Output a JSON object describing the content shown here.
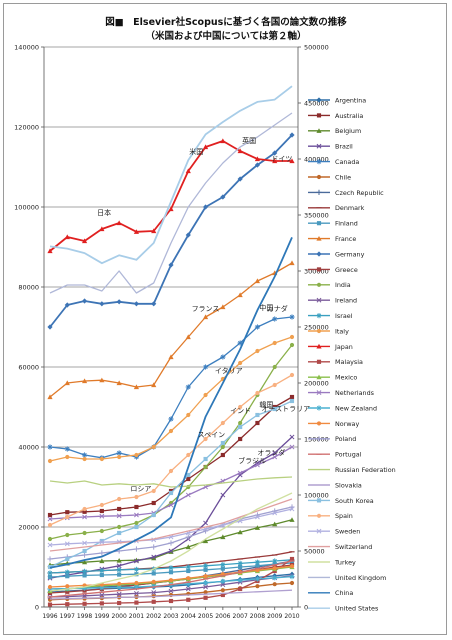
{
  "chart_data": {
    "type": "line",
    "title": "図■　Elsevier社Scopusに基づく各国の論文数の推移",
    "subtitle": "（米国および中国については第２軸）",
    "x": [
      "1996",
      "1997",
      "1998",
      "1999",
      "2000",
      "2001",
      "2002",
      "2003",
      "2004",
      "2005",
      "2006",
      "2007",
      "2008",
      "2009",
      "2010"
    ],
    "ylim_left": [
      0,
      140000
    ],
    "yticks_left": [
      "0",
      "20000",
      "40000",
      "60000",
      "80000",
      "100000",
      "120000",
      "140000"
    ],
    "ylim_right": [
      0,
      500000
    ],
    "yticks_right": [
      "0",
      "50000",
      "100000",
      "150000",
      "200000",
      "250000",
      "300000",
      "350000",
      "400000",
      "450000",
      "500000"
    ],
    "grid": true,
    "legend_position": "right",
    "series": [
      {
        "name": "Argentina",
        "color": "#2e6fa7",
        "marker": "diamond",
        "axis": "left",
        "values": [
          3700,
          4000,
          4200,
          4500,
          4700,
          4800,
          5000,
          5200,
          5500,
          6000,
          6400,
          6900,
          7400,
          7800,
          8200
        ]
      },
      {
        "name": "Australia",
        "color": "#8b2b2b",
        "marker": "square",
        "axis": "left",
        "values": [
          23000,
          23700,
          23800,
          24000,
          24500,
          25000,
          26000,
          29000,
          32000,
          35000,
          38000,
          42000,
          46000,
          50000,
          52500
        ]
      },
      {
        "name": "Belgium",
        "color": "#5e8a2c",
        "marker": "triangle",
        "axis": "left",
        "values": [
          10500,
          10900,
          11200,
          11500,
          11600,
          11700,
          12200,
          13800,
          15000,
          16500,
          17500,
          18700,
          19800,
          20700,
          21800
        ]
      },
      {
        "name": "Brazil",
        "color": "#6a4d99",
        "marker": "x",
        "axis": "left",
        "values": [
          7200,
          8000,
          8700,
          9500,
          10300,
          11500,
          12500,
          14000,
          17000,
          21000,
          28000,
          33000,
          36000,
          38500,
          42500
        ]
      },
      {
        "name": "Canada",
        "color": "#3d7fbf",
        "marker": "star",
        "axis": "left",
        "values": [
          40000,
          39500,
          38000,
          37300,
          38500,
          37500,
          40000,
          47000,
          55000,
          60000,
          62500,
          66000,
          70000,
          72000,
          72500
        ]
      },
      {
        "name": "Chile",
        "color": "#c0692a",
        "marker": "circle",
        "axis": "left",
        "values": [
          1800,
          2000,
          2100,
          2200,
          2400,
          2500,
          2700,
          3000,
          3300,
          3700,
          4200,
          4700,
          5200,
          5700,
          6000
        ]
      },
      {
        "name": "Czech Republic",
        "color": "#4a6a9a",
        "marker": "plus",
        "axis": "left",
        "values": [
          4500,
          4600,
          4800,
          5000,
          5200,
          5500,
          6000,
          6500,
          7000,
          7800,
          8500,
          9200,
          10000,
          10700,
          11500
        ]
      },
      {
        "name": "Denmark",
        "color": "#9a3a3a",
        "marker": "dash",
        "axis": "left",
        "values": [
          8500,
          8700,
          8900,
          9100,
          9300,
          9500,
          9700,
          10000,
          10500,
          11000,
          11500,
          12000,
          12500,
          13000,
          13800
        ]
      },
      {
        "name": "Finland",
        "color": "#4a9abf",
        "marker": "square",
        "axis": "left",
        "values": [
          7500,
          7700,
          7900,
          8000,
          8100,
          8200,
          8400,
          8700,
          9000,
          9300,
          9600,
          10000,
          10300,
          10700,
          11000
        ]
      },
      {
        "name": "France",
        "color": "#e07a2a",
        "marker": "triangle",
        "axis": "left",
        "values": [
          52500,
          56000,
          56500,
          56700,
          56000,
          55000,
          55500,
          62500,
          67500,
          72500,
          75000,
          78000,
          81500,
          83500,
          86000
        ]
      },
      {
        "name": "Germany",
        "color": "#3d74b5",
        "marker": "diamond",
        "axis": "left",
        "values": [
          70000,
          75500,
          76500,
          75800,
          76300,
          75800,
          75800,
          85500,
          93000,
          100000,
          102500,
          107000,
          110500,
          113500,
          118000
        ]
      },
      {
        "name": "Greece",
        "color": "#a04040",
        "marker": "square",
        "axis": "left",
        "values": [
          3500,
          3800,
          4100,
          4500,
          5000,
          5500,
          6000,
          6500,
          7000,
          7500,
          8000,
          8700,
          9300,
          10000,
          10500
        ]
      },
      {
        "name": "India",
        "color": "#8ab04a",
        "marker": "circle",
        "axis": "left",
        "values": [
          17000,
          18000,
          18500,
          19000,
          20000,
          21000,
          23000,
          26000,
          30000,
          35000,
          40000,
          46000,
          53000,
          60000,
          65500
        ]
      },
      {
        "name": "Ireland",
        "color": "#7a5a9a",
        "marker": "x",
        "axis": "left",
        "values": [
          2500,
          2600,
          2800,
          3000,
          3200,
          3400,
          3600,
          4000,
          4500,
          5000,
          5600,
          6200,
          6800,
          7300,
          7800
        ]
      },
      {
        "name": "Israel",
        "color": "#3aa0c0",
        "marker": "star",
        "axis": "left",
        "values": [
          8500,
          8700,
          8900,
          9100,
          9300,
          9400,
          9500,
          9800,
          10000,
          10300,
          10600,
          10900,
          11200,
          11500,
          11800
        ]
      },
      {
        "name": "Italy",
        "color": "#f0a050",
        "marker": "circle",
        "axis": "left",
        "values": [
          36500,
          37500,
          37000,
          37000,
          37500,
          38000,
          40000,
          44000,
          48000,
          53000,
          57000,
          61000,
          64000,
          66000,
          67500
        ]
      },
      {
        "name": "Japan",
        "color": "#e02020",
        "marker": "triangle",
        "axis": "left",
        "values": [
          89000,
          92500,
          91500,
          94500,
          96000,
          93800,
          94000,
          99500,
          109000,
          115000,
          116500,
          114000,
          112000,
          111500,
          111500
        ]
      },
      {
        "name": "Malaysia",
        "color": "#b04a4a",
        "marker": "square",
        "axis": "left",
        "values": [
          600,
          700,
          800,
          900,
          1000,
          1100,
          1300,
          1500,
          1800,
          2300,
          3000,
          4500,
          6500,
          9000,
          12000
        ]
      },
      {
        "name": "Mexico",
        "color": "#8abf4a",
        "marker": "triangle",
        "axis": "left",
        "values": [
          4000,
          4500,
          5000,
          5300,
          5500,
          5800,
          6100,
          6500,
          7000,
          7500,
          8000,
          8500,
          9000,
          9500,
          10000
        ]
      },
      {
        "name": "Netherlands",
        "color": "#9a7ac0",
        "marker": "x",
        "axis": "left",
        "values": [
          22000,
          22300,
          22500,
          22700,
          22800,
          23000,
          23500,
          25500,
          28000,
          30000,
          31500,
          33500,
          35500,
          37500,
          40000
        ]
      },
      {
        "name": "New Zealand",
        "color": "#4ab0d0",
        "marker": "star",
        "axis": "left",
        "values": [
          4500,
          4600,
          4700,
          4800,
          4900,
          5000,
          5200,
          5500,
          5800,
          6100,
          6400,
          6700,
          7000,
          7300,
          7600
        ]
      },
      {
        "name": "Norway",
        "color": "#f08a40",
        "marker": "circle",
        "axis": "left",
        "values": [
          5000,
          5200,
          5400,
          5600,
          5800,
          6000,
          6300,
          6700,
          7200,
          7700,
          8200,
          8700,
          9200,
          9700,
          10200
        ]
      },
      {
        "name": "Poland",
        "color": "#a0a0d0",
        "marker": "plus",
        "axis": "left",
        "values": [
          12000,
          12500,
          13000,
          13500,
          14000,
          14500,
          15000,
          16000,
          17500,
          19000,
          20500,
          22000,
          23000,
          24000,
          25000
        ]
      },
      {
        "name": "Portugal",
        "color": "#d07070",
        "marker": "dash",
        "axis": "left",
        "values": [
          2500,
          2900,
          3300,
          3700,
          4100,
          4500,
          5000,
          5600,
          6200,
          7000,
          7800,
          8700,
          9600,
          10500,
          11500
        ]
      },
      {
        "name": "Russian Federation",
        "color": "#b8d080",
        "marker": "none",
        "axis": "left",
        "values": [
          31500,
          31000,
          31500,
          30500,
          30800,
          30500,
          30800,
          30000,
          30200,
          30500,
          31000,
          31500,
          32000,
          32300,
          32500
        ]
      },
      {
        "name": "Slovakia",
        "color": "#b0a0d0",
        "marker": "none",
        "axis": "left",
        "values": [
          2000,
          2100,
          2200,
          2300,
          2400,
          2500,
          2600,
          2800,
          3000,
          3200,
          3400,
          3600,
          3800,
          4000,
          4200
        ]
      },
      {
        "name": "South Korea",
        "color": "#8ac0e0",
        "marker": "square",
        "axis": "left",
        "values": [
          10000,
          12000,
          14000,
          16500,
          18500,
          20000,
          23000,
          28500,
          33000,
          37000,
          41000,
          45000,
          48000,
          49500,
          51500
        ]
      },
      {
        "name": "Spain",
        "color": "#f8b080",
        "marker": "circle",
        "axis": "left",
        "values": [
          20500,
          22500,
          24500,
          25500,
          27000,
          27500,
          29000,
          34000,
          38000,
          42000,
          46000,
          50000,
          53500,
          55500,
          58000
        ]
      },
      {
        "name": "Sweden",
        "color": "#b0b0e0",
        "marker": "x",
        "axis": "left",
        "values": [
          15500,
          15800,
          16000,
          16200,
          16300,
          16500,
          16800,
          17500,
          18500,
          19500,
          20500,
          21500,
          22500,
          23500,
          24500
        ]
      },
      {
        "name": "Switzerland",
        "color": "#e0a0a0",
        "marker": "none",
        "axis": "left",
        "values": [
          14000,
          14500,
          15000,
          15500,
          16000,
          16500,
          17000,
          18000,
          19000,
          20000,
          21000,
          22500,
          24000,
          25500,
          27000
        ]
      },
      {
        "name": "Turkey",
        "color": "#d0e0a0",
        "marker": "none",
        "axis": "left",
        "values": [
          4000,
          4500,
          5000,
          6000,
          7000,
          8000,
          9500,
          11500,
          14000,
          17000,
          19500,
          22000,
          24500,
          26500,
          28500
        ]
      },
      {
        "name": "United Kingdom",
        "color": "#b0b8d8",
        "marker": "none",
        "axis": "left",
        "values": [
          78500,
          80500,
          80500,
          79000,
          84000,
          78500,
          81000,
          91000,
          100000,
          106000,
          111000,
          115000,
          117500,
          120500,
          123500
        ]
      },
      {
        "name": "China",
        "color": "#2e78b8",
        "marker": "none",
        "axis": "right",
        "values": [
          35000,
          38000,
          42000,
          45000,
          52000,
          60000,
          68000,
          80000,
          125000,
          170000,
          200000,
          230000,
          265000,
          295000,
          330000
        ]
      },
      {
        "name": "United States",
        "color": "#a8cde8",
        "marker": "none",
        "axis": "right",
        "values": [
          322000,
          320000,
          316000,
          307000,
          314000,
          310000,
          325000,
          362000,
          399000,
          422000,
          433000,
          443000,
          451000,
          453000,
          465000
        ]
      }
    ],
    "annotations": [
      {
        "text": "米国",
        "series": "United States"
      },
      {
        "text": "英国",
        "series": "United Kingdom"
      },
      {
        "text": "ドイツ",
        "series": "Germany"
      },
      {
        "text": "日本",
        "series": "Japan"
      },
      {
        "text": "中国",
        "series": "China"
      },
      {
        "text": "フランス",
        "series": "France"
      },
      {
        "text": "カナダ",
        "series": "Canada"
      },
      {
        "text": "イタリア",
        "series": "Italy"
      },
      {
        "text": "インド",
        "series": "India"
      },
      {
        "text": "スペイン",
        "series": "Spain"
      },
      {
        "text": "韓国",
        "series": "South Korea"
      },
      {
        "text": "オーストラリア",
        "series": "Australia"
      },
      {
        "text": "ロシア",
        "series": "Russian Federation"
      },
      {
        "text": "ブラジル",
        "series": "Brazil"
      },
      {
        "text": "オランダ",
        "series": "Netherlands"
      }
    ]
  }
}
